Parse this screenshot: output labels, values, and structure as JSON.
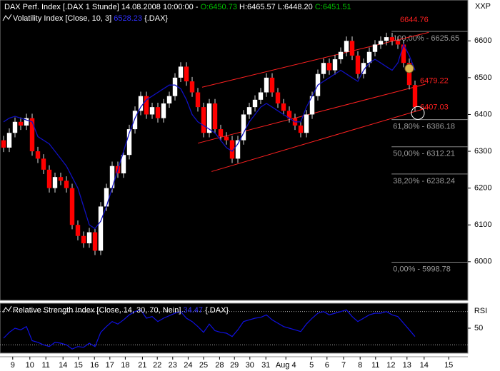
{
  "chart_data": [
    {
      "type": "candlestick",
      "title": "DAX Perf. Index [.DAX  1 Stunde] 14.08.2008 10:00:00 -",
      "title_open": "O:6450.73",
      "title_hl": "H:6465.57 L:6448.20",
      "title_close": "C:6451.51",
      "axis_label": "XXP",
      "up_color": "#ffffff",
      "down_color": "#ff0000",
      "open": [
        6330,
        6310,
        6350,
        6380,
        6370,
        6390,
        6300,
        6280,
        6250,
        6200,
        6230,
        6220,
        6200,
        6100,
        6070,
        6050,
        6080,
        6030,
        6150,
        6200,
        6260,
        6240,
        6290,
        6360,
        6410,
        6450,
        6400,
        6420,
        6390,
        6430,
        6450,
        6500,
        6530,
        6490,
        6460,
        6420,
        6350,
        6430,
        6360,
        6340,
        6330,
        6280,
        6330,
        6400,
        6420,
        6440,
        6460,
        6500,
        6460,
        6430,
        6410,
        6390,
        6370,
        6350,
        6400,
        6450,
        6510,
        6540,
        6520,
        6550,
        6570,
        6600,
        6560,
        6510,
        6540,
        6570,
        6590,
        6600,
        6610,
        6600,
        6590,
        6540,
        6480
      ],
      "high": [
        6342,
        6362,
        6392,
        6392,
        6402,
        6402,
        6312,
        6292,
        6262,
        6242,
        6242,
        6232,
        6212,
        6112,
        6082,
        6092,
        6092,
        6162,
        6212,
        6272,
        6272,
        6302,
        6372,
        6422,
        6462,
        6462,
        6432,
        6432,
        6442,
        6462,
        6512,
        6542,
        6542,
        6502,
        6472,
        6432,
        6442,
        6442,
        6372,
        6352,
        6342,
        6342,
        6412,
        6432,
        6452,
        6472,
        6512,
        6512,
        6472,
        6442,
        6422,
        6402,
        6382,
        6412,
        6462,
        6522,
        6552,
        6552,
        6562,
        6582,
        6612,
        6612,
        6572,
        6552,
        6582,
        6602,
        6612,
        6622,
        6622,
        6612,
        6602,
        6552,
        6492
      ],
      "low": [
        6298,
        6298,
        6338,
        6358,
        6358,
        6288,
        6268,
        6238,
        6188,
        6188,
        6208,
        6188,
        6088,
        6058,
        6038,
        6038,
        6018,
        6018,
        6138,
        6188,
        6228,
        6228,
        6278,
        6348,
        6398,
        6388,
        6388,
        6378,
        6378,
        6418,
        6438,
        6488,
        6478,
        6448,
        6408,
        6338,
        6338,
        6348,
        6328,
        6318,
        6268,
        6268,
        6318,
        6388,
        6408,
        6428,
        6448,
        6448,
        6418,
        6398,
        6378,
        6358,
        6338,
        6338,
        6388,
        6438,
        6498,
        6508,
        6508,
        6538,
        6558,
        6548,
        6498,
        6498,
        6528,
        6558,
        6578,
        6588,
        6588,
        6578,
        6528,
        6468,
        6408
      ],
      "close": [
        6310,
        6350,
        6380,
        6370,
        6390,
        6300,
        6280,
        6250,
        6200,
        6230,
        6220,
        6200,
        6100,
        6070,
        6050,
        6080,
        6030,
        6150,
        6200,
        6260,
        6240,
        6290,
        6360,
        6410,
        6450,
        6400,
        6420,
        6390,
        6430,
        6450,
        6500,
        6530,
        6490,
        6460,
        6420,
        6350,
        6430,
        6360,
        6340,
        6330,
        6280,
        6330,
        6400,
        6420,
        6440,
        6460,
        6500,
        6460,
        6430,
        6410,
        6390,
        6370,
        6350,
        6400,
        6450,
        6510,
        6540,
        6520,
        6550,
        6570,
        6600,
        6560,
        6510,
        6540,
        6570,
        6590,
        6600,
        6610,
        6600,
        6590,
        6540,
        6480,
        6420
      ],
      "series": [
        {
          "name": "Volatility Index [Close, 10, 3]",
          "color": "#1010c0",
          "last_value": 6528.23,
          "suffix": "{.DAX}",
          "values": [
            6380,
            6390,
            6395,
            6390,
            6385,
            6380,
            6340,
            6330,
            6320,
            6300,
            6280,
            6260,
            6230,
            6200,
            6150,
            6100,
            6090,
            6110,
            6150,
            6200,
            6250,
            6300,
            6350,
            6390,
            6420,
            6440,
            6450,
            6460,
            6470,
            6480,
            6480,
            6470,
            6440,
            6400,
            6380,
            6370,
            6360,
            6350,
            6330,
            6310,
            6300,
            6320,
            6350,
            6380,
            6400,
            6420,
            6430,
            6420,
            6410,
            6400,
            6390,
            6380,
            6380,
            6420,
            6450,
            6480,
            6490,
            6500,
            6510,
            6520,
            6510,
            6500,
            6490,
            6520,
            6540,
            6550,
            6540,
            6530,
            6520,
            6540,
            6590,
            6560,
            6520
          ]
        }
      ],
      "channels": [
        {
          "x": [
            34.75,
            74.4
          ],
          "values": [
            6474,
            6623
          ]
        },
        {
          "x": [
            34.0,
            73.8
          ],
          "values": [
            6322,
            6482
          ]
        },
        {
          "x": [
            36.4,
            74.4
          ],
          "values": [
            6245,
            6419
          ]
        }
      ],
      "channel_color": "#ff2020",
      "fib_levels": [
        {
          "value": 6625.65,
          "label": "100,00% - 6625.65"
        },
        {
          "value": 6386.18,
          "label": "61,80% - 6386.18"
        },
        {
          "value": 6312.21,
          "label": "50,00% - 6312.21"
        },
        {
          "value": 6238.24,
          "label": "38,20% - 6238.24"
        },
        {
          "value": 5998.78,
          "label": "0,00% - 5998.78"
        }
      ],
      "fib_start": 67.9,
      "price_markers": [
        6644.76,
        6479.22,
        6407.03
      ],
      "markers": [
        {
          "x": 71.0,
          "value": 6525,
          "color": "#d8b850"
        },
        {
          "x": 72.5,
          "value": 6404,
          "color": "none"
        }
      ],
      "xlim": [
        -0.625,
        81.25
      ],
      "ylim": [
        5895,
        6711
      ],
      "yticks": [
        6000,
        6100,
        6200,
        6300,
        6400,
        6500,
        6600
      ],
      "xticks": [
        {
          "value": 1.6,
          "label": "9"
        },
        {
          "value": 4.6,
          "label": "10"
        },
        {
          "value": 7.4,
          "label": "11"
        },
        {
          "value": 10.4,
          "label": "14"
        },
        {
          "value": 13.1,
          "label": "15"
        },
        {
          "value": 15.9,
          "label": "16"
        },
        {
          "value": 18.6,
          "label": "17"
        },
        {
          "value": 21.3,
          "label": "18"
        },
        {
          "value": 24.3,
          "label": "21"
        },
        {
          "value": 26.9,
          "label": "22"
        },
        {
          "value": 29.6,
          "label": "23"
        },
        {
          "value": 32.3,
          "label": "24"
        },
        {
          "value": 35.0,
          "label": "25"
        },
        {
          "value": 37.8,
          "label": "28"
        },
        {
          "value": 40.4,
          "label": "29"
        },
        {
          "value": 43.1,
          "label": "30"
        },
        {
          "value": 45.9,
          "label": "31"
        },
        {
          "value": 49.4,
          "label": "Aug 4"
        },
        {
          "value": 53.9,
          "label": "5"
        },
        {
          "value": 56.6,
          "label": "6"
        },
        {
          "value": 59.5,
          "label": "7"
        },
        {
          "value": 62.4,
          "label": "8"
        },
        {
          "value": 65.1,
          "label": "11"
        },
        {
          "value": 67.8,
          "label": "12"
        },
        {
          "value": 70.6,
          "label": "13"
        },
        {
          "value": 73.6,
          "label": "14"
        },
        {
          "value": 77.9,
          "label": "15"
        }
      ]
    },
    {
      "type": "line",
      "title": "Relative Strength Index [Close, 14, 30, 70, Nein]",
      "last_value": 34.47,
      "suffix": "{.DAX}",
      "axis_label": "RSI",
      "color": "#1010e0",
      "values": [
        38,
        45,
        50,
        48,
        52,
        35,
        33,
        30,
        28,
        33,
        32,
        30,
        25,
        28,
        27,
        32,
        28,
        45,
        52,
        58,
        55,
        60,
        66,
        70,
        72,
        62,
        64,
        58,
        62,
        65,
        68,
        70,
        62,
        58,
        52,
        45,
        55,
        47,
        45,
        44,
        40,
        48,
        58,
        60,
        62,
        63,
        66,
        60,
        56,
        52,
        50,
        48,
        46,
        55,
        62,
        68,
        70,
        66,
        68,
        70,
        72,
        64,
        58,
        62,
        66,
        68,
        68,
        70,
        66,
        64,
        56,
        48,
        40
      ],
      "guides": [
        30,
        70
      ],
      "ylim": [
        20,
        80
      ],
      "yticks": [
        50
      ]
    }
  ]
}
